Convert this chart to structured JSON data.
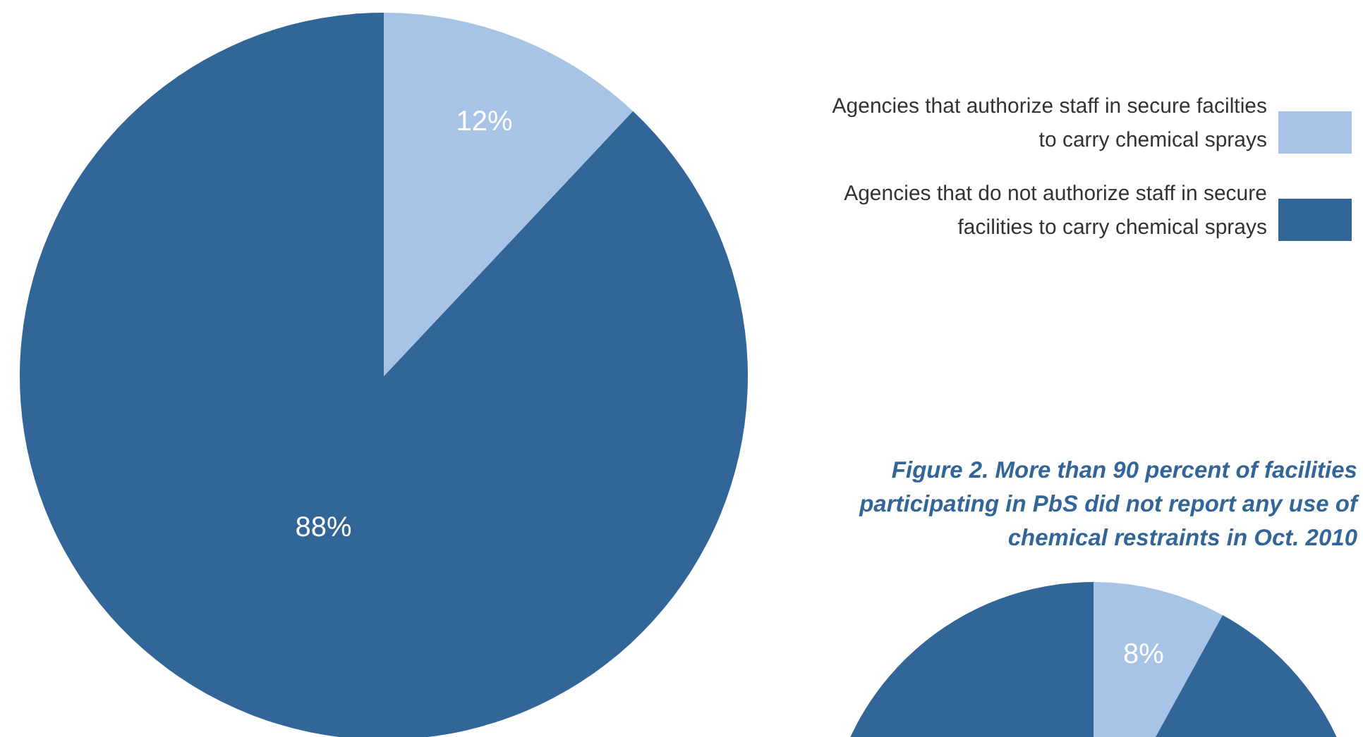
{
  "chart_data": [
    {
      "type": "pie",
      "categories": [
        "Agencies that authorize staff in secure facilties to carry chemical sprays",
        "Agencies that do not authorize staff in secure facilities to carry chemical sprays"
      ],
      "values": [
        12,
        88
      ],
      "colors": [
        "#a7c4e6",
        "#326699"
      ],
      "value_labels": [
        "12%",
        "88%"
      ],
      "legend": "right"
    },
    {
      "type": "pie",
      "title": "Figure 2.  More than 90 percent of facilities participating in PbS did not report any use of chemical restraints in Oct. 2010",
      "categories": [
        null,
        null
      ],
      "values": [
        8,
        92
      ],
      "colors": [
        "#a7c4e6",
        "#326699"
      ],
      "value_labels": [
        "8%",
        null
      ]
    }
  ]
}
